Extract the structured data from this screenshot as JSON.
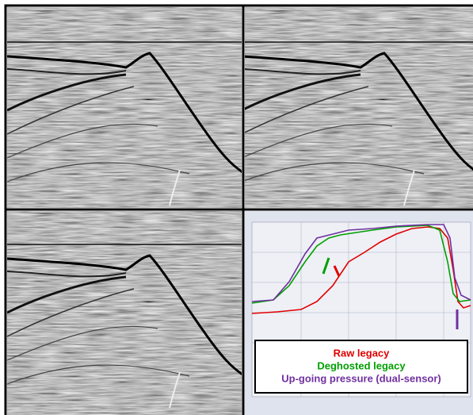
{
  "legend": {
    "items": [
      {
        "label": "Raw legacy",
        "color": "#e00000"
      },
      {
        "label": "Deghosted legacy",
        "color": "#00a000"
      },
      {
        "label": "Up-going pressure (dual-sensor)",
        "color": "#7030a0"
      }
    ]
  }
}
